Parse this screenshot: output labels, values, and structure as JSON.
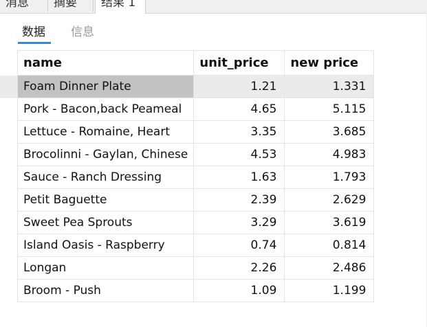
{
  "top_tabs": [
    "消息",
    "摘要",
    "结果 1"
  ],
  "sub_tabs": [
    "数据",
    "信息"
  ],
  "columns": [
    "name",
    "unit_price",
    "new price"
  ],
  "rows": [
    {
      "name": "Foam Dinner Plate",
      "unit_price": "1.21",
      "new_price": "1.331"
    },
    {
      "name": "Pork - Bacon,back Peameal",
      "unit_price": "4.65",
      "new_price": "5.115"
    },
    {
      "name": "Lettuce - Romaine, Heart",
      "unit_price": "3.35",
      "new_price": "3.685"
    },
    {
      "name": "Brocolinni - Gaylan, Chinese",
      "unit_price": "4.53",
      "new_price": "4.983"
    },
    {
      "name": "Sauce - Ranch Dressing",
      "unit_price": "1.63",
      "new_price": "1.793"
    },
    {
      "name": "Petit Baguette",
      "unit_price": "2.39",
      "new_price": "2.629"
    },
    {
      "name": "Sweet Pea Sprouts",
      "unit_price": "3.29",
      "new_price": "3.619"
    },
    {
      "name": "Island Oasis - Raspberry",
      "unit_price": "0.74",
      "new_price": "0.814"
    },
    {
      "name": "Longan",
      "unit_price": "2.26",
      "new_price": "2.486"
    },
    {
      "name": "Broom - Push",
      "unit_price": "1.09",
      "new_price": "1.199"
    }
  ],
  "colors": {
    "accent": "#2f8cd9",
    "selected_cell": "#c2c2c2",
    "selected_row": "#ebebeb"
  }
}
